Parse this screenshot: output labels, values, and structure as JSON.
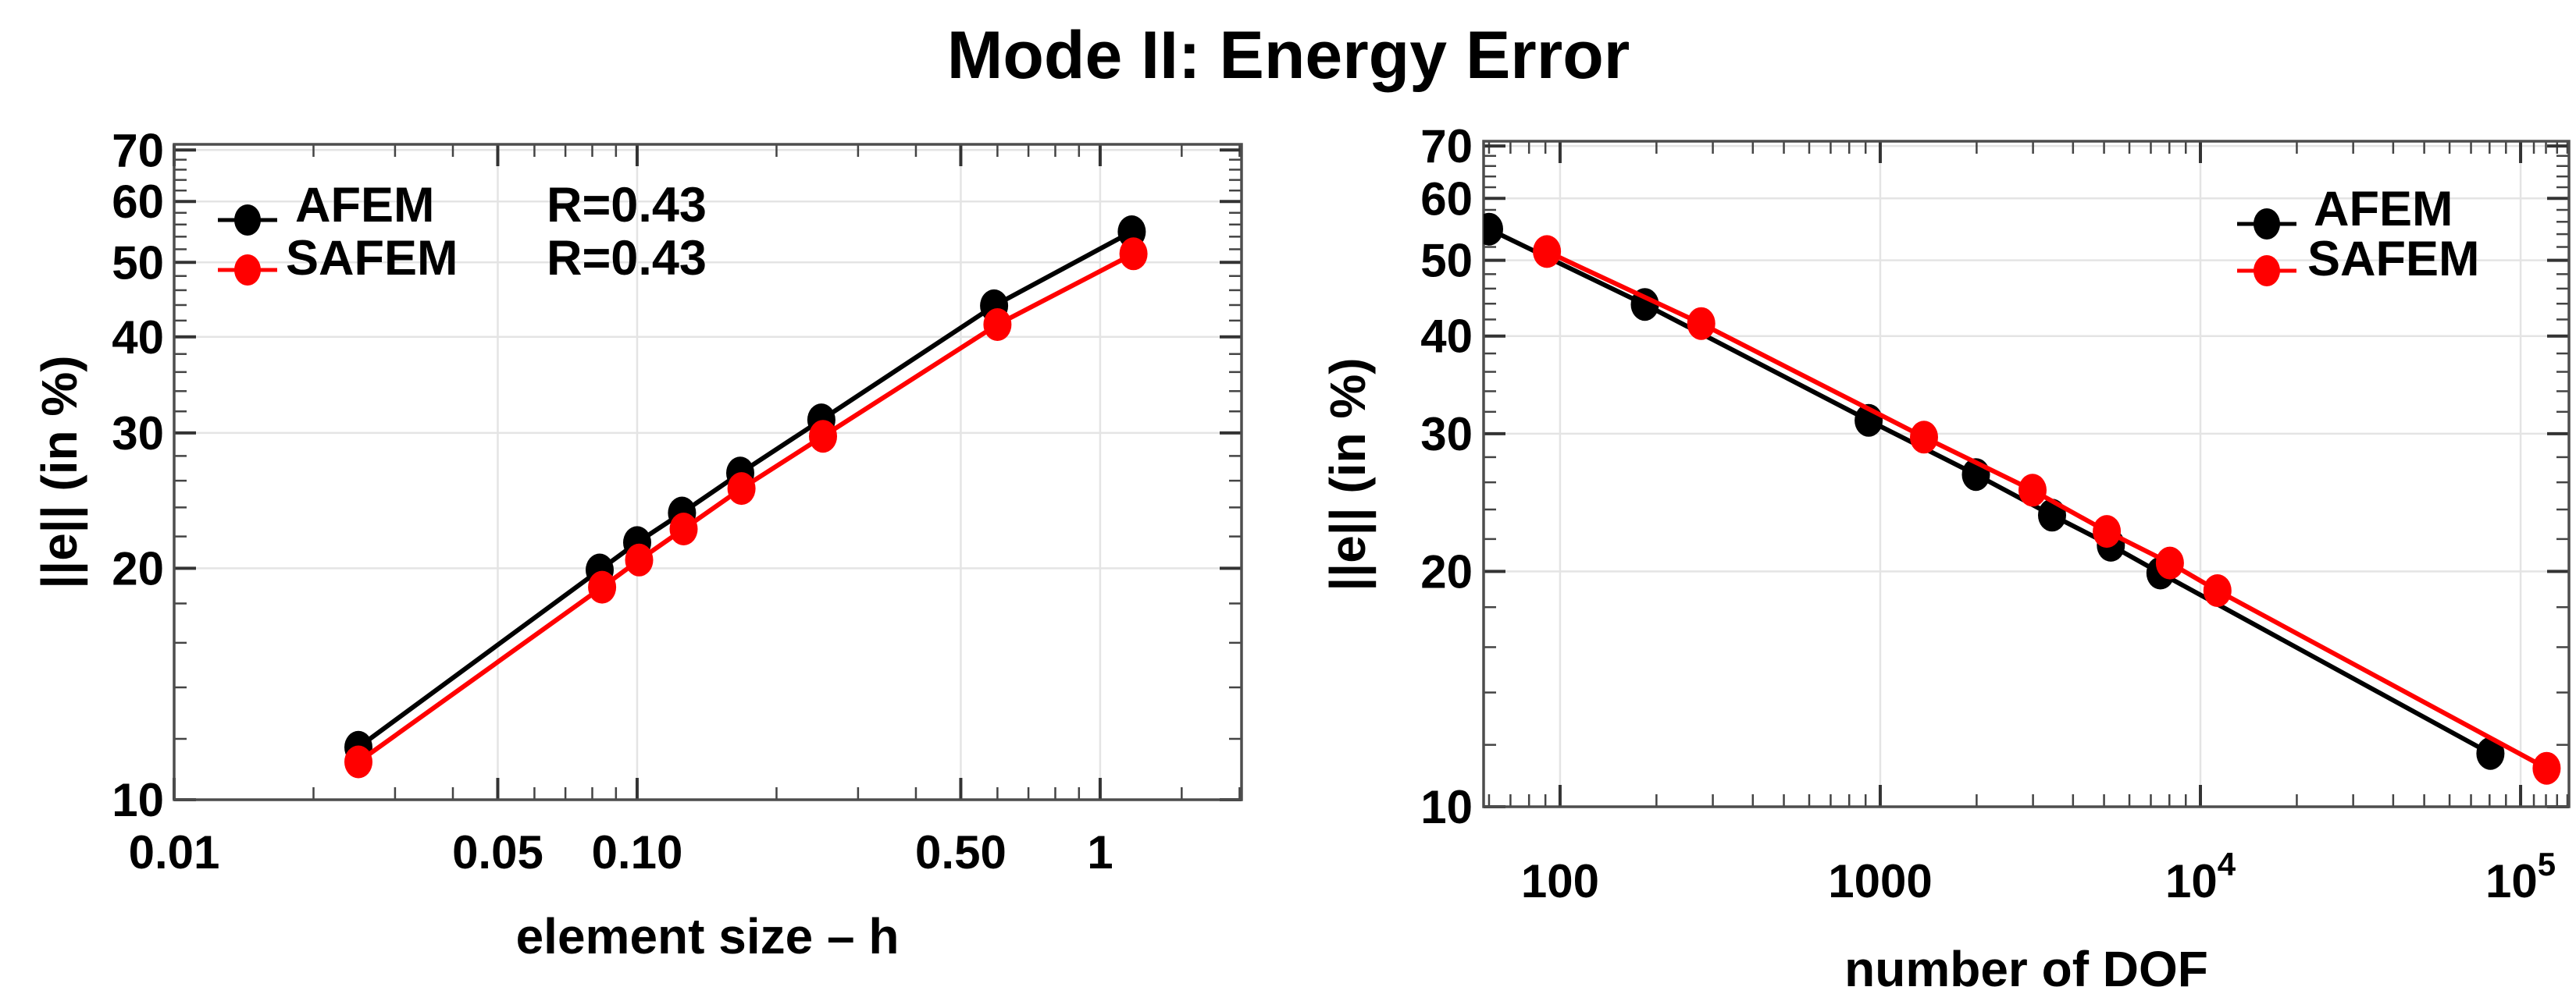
{
  "title": "Mode II: Energy Error",
  "colors": {
    "afem": "#000000",
    "safem": "#ff0000",
    "grid": "#e4e4e4",
    "frame": "#4d4d4d"
  },
  "chart_data": [
    {
      "type": "scatter",
      "title": "",
      "xlabel": "element size – h",
      "ylabel": "||e|| (in %)",
      "xscale": "log",
      "yscale": "log",
      "xlim": [
        0.01,
        2.02
      ],
      "ylim": [
        10,
        71.2
      ],
      "grid": true,
      "x_ticks": [
        {
          "v": 0.01,
          "label": "0.01"
        },
        {
          "v": 0.05,
          "label": "0.05"
        },
        {
          "v": 0.1,
          "label": "0.10"
        },
        {
          "v": 0.5,
          "label": "0.50"
        },
        {
          "v": 1,
          "label": "1"
        }
      ],
      "y_ticks": [
        {
          "v": 10,
          "label": "10"
        },
        {
          "v": 20,
          "label": "20"
        },
        {
          "v": 30,
          "label": "30"
        },
        {
          "v": 40,
          "label": "40"
        },
        {
          "v": 50,
          "label": "50"
        },
        {
          "v": 60,
          "label": "60"
        },
        {
          "v": 70,
          "label": "70"
        }
      ],
      "grid_x": [
        0.05,
        0.1,
        0.5,
        1
      ],
      "grid_y": [
        20,
        30,
        40,
        50,
        60,
        70
      ],
      "legend": {
        "position": "top-left",
        "entries": [
          {
            "name": "AFEM",
            "annotation": "R=0.43",
            "color": "#000000"
          },
          {
            "name": "SAFEM",
            "annotation": "R=0.43",
            "color": "#ff0000"
          }
        ]
      },
      "series": [
        {
          "name": "AFEM",
          "color": "#000000",
          "x": [
            0.025,
            0.083,
            0.1,
            0.125,
            0.167,
            0.25,
            0.59,
            1.17
          ],
          "y": [
            11.7,
            19.9,
            21.6,
            23.6,
            26.6,
            31.2,
            43.9,
            54.8
          ]
        },
        {
          "name": "SAFEM",
          "color": "#ff0000",
          "x": [
            0.025,
            0.084,
            0.101,
            0.126,
            0.168,
            0.252,
            0.6,
            1.18
          ],
          "y": [
            11.2,
            18.9,
            20.5,
            22.5,
            25.4,
            29.7,
            41.5,
            51.3
          ]
        }
      ]
    },
    {
      "type": "scatter",
      "title": "",
      "xlabel": "number of DOF",
      "ylabel": "||e|| (in %)",
      "xscale": "log",
      "yscale": "log",
      "xlim": [
        57.7,
        141600
      ],
      "ylim": [
        10,
        71
      ],
      "grid": true,
      "x_ticks": [
        {
          "v": 100,
          "label": "100"
        },
        {
          "v": 1000,
          "label": "1000"
        },
        {
          "v": 10000,
          "label": "10^4"
        },
        {
          "v": 100000,
          "label": "10^5"
        }
      ],
      "y_ticks": [
        {
          "v": 10,
          "label": "10"
        },
        {
          "v": 20,
          "label": "20"
        },
        {
          "v": 30,
          "label": "30"
        },
        {
          "v": 40,
          "label": "40"
        },
        {
          "v": 50,
          "label": "50"
        },
        {
          "v": 60,
          "label": "60"
        },
        {
          "v": 70,
          "label": "70"
        }
      ],
      "grid_x": [
        100,
        1000,
        10000,
        100000
      ],
      "grid_y": [
        20,
        30,
        40,
        50,
        60,
        70
      ],
      "legend": {
        "position": "top-right",
        "entries": [
          {
            "name": "AFEM",
            "annotation": "",
            "color": "#000000"
          },
          {
            "name": "SAFEM",
            "annotation": "",
            "color": "#ff0000"
          }
        ]
      },
      "series": [
        {
          "name": "AFEM",
          "color": "#000000",
          "x": [
            60,
            184,
            920,
            1990,
            3440,
            5250,
            7500,
            80500
          ],
          "y": [
            54.8,
            43.9,
            31.2,
            26.6,
            23.6,
            21.6,
            19.9,
            11.7
          ]
        },
        {
          "name": "SAFEM",
          "color": "#ff0000",
          "x": [
            91,
            276,
            1370,
            2990,
            5100,
            8030,
            11300,
            120600
          ],
          "y": [
            51.3,
            41.5,
            29.7,
            25.4,
            22.5,
            20.5,
            18.9,
            11.2
          ]
        }
      ]
    }
  ]
}
